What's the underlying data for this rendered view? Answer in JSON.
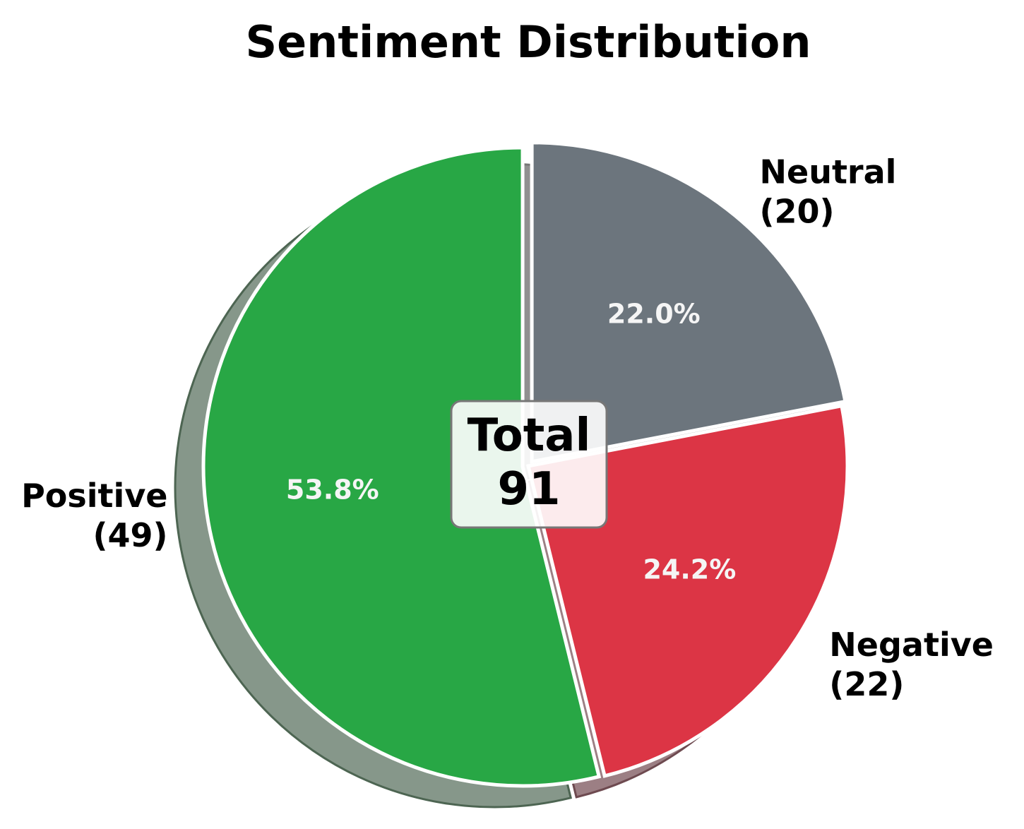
{
  "chart_data": {
    "type": "pie",
    "title": "Sentiment Distribution",
    "total_label": "Total",
    "total_value": "91",
    "slices": [
      {
        "name": "Neutral",
        "value": 20,
        "count_label": "(20)",
        "percent_label": "22.0%",
        "color": "#6c757d",
        "exploded": true
      },
      {
        "name": "Negative",
        "value": 22,
        "count_label": "(22)",
        "percent_label": "24.2%",
        "color": "#dc3545",
        "exploded": false
      },
      {
        "name": "Positive",
        "value": 49,
        "count_label": "(49)",
        "percent_label": "53.8%",
        "color": "#28a745",
        "exploded": true
      }
    ],
    "shadow": true,
    "start": "top, clockwise"
  }
}
